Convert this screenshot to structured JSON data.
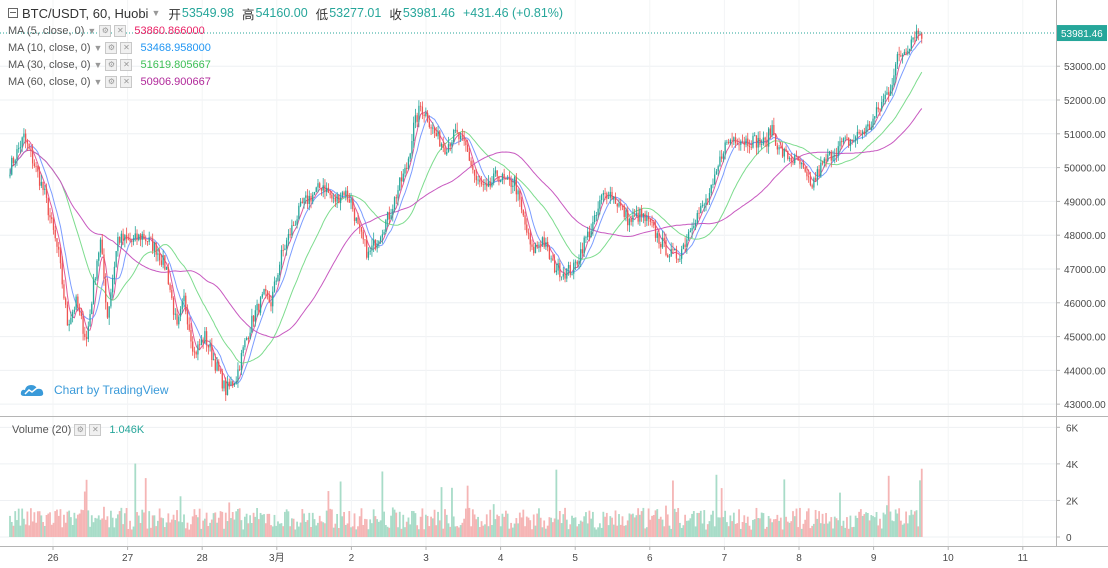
{
  "header": {
    "symbol": "BTC/USDT, 60, Huobi",
    "open_label": "开",
    "open": "53549.98",
    "high_label": "高",
    "high": "54160.00",
    "low_label": "低",
    "low": "53277.01",
    "close_label": "收",
    "close": "53981.46",
    "change": "+431.46 (+0.81%)"
  },
  "indicators": [
    {
      "name": "MA (5, close, 0)",
      "value": "53860.866000",
      "color": "#e91e63"
    },
    {
      "name": "MA (10, close, 0)",
      "value": "53468.958000",
      "color": "#2196f3"
    },
    {
      "name": "MA (30, close, 0)",
      "value": "51619.805667",
      "color": "#4caf50"
    },
    {
      "name": "MA (60, close, 0)",
      "value": "50906.900667",
      "color": "#9c27b0"
    }
  ],
  "volume": {
    "name": "Volume (20)",
    "value": "1.046K"
  },
  "attribution": "Chart by TradingView",
  "colors": {
    "up": "#26a69a",
    "down": "#ef5350",
    "up_vol": "#a8dcc8",
    "down_vol": "#f5b5b5",
    "ma5": "#e05a9a",
    "ma10": "#7b9cff",
    "ma30": "#7ddc8e",
    "ma60": "#c85ac0",
    "last_price": "#26a69a"
  },
  "chart_data": {
    "type": "candlestick",
    "interval": "60",
    "price_axis": {
      "ticks": [
        "43000.00",
        "44000.00",
        "45000.00",
        "46000.00",
        "47000.00",
        "48000.00",
        "49000.00",
        "50000.00",
        "51000.00",
        "52000.00",
        "53000.00"
      ],
      "ylim": [
        42650,
        54900
      ],
      "last_price_label": "53981.46"
    },
    "volume_axis": {
      "ticks": [
        "0",
        "2K",
        "4K",
        "6K"
      ],
      "ylim": [
        0,
        6400
      ]
    },
    "time_axis": {
      "labels": [
        "26",
        "27",
        "28",
        "3月",
        "2",
        "3",
        "4",
        "5",
        "6",
        "7",
        "8",
        "9",
        "10",
        "11"
      ]
    },
    "anchors": [
      {
        "day": "26",
        "t": 0,
        "close": 50000
      },
      {
        "t": 8,
        "close": 50900
      },
      {
        "t": 14,
        "close": 50100
      },
      {
        "t": 20,
        "close": 49200
      },
      {
        "t": 28,
        "close": 47400
      },
      {
        "t": 33,
        "close": 45400
      },
      {
        "t": 38,
        "close": 46000
      },
      {
        "t": 44,
        "close": 44900
      },
      {
        "t": 50,
        "close": 47300
      },
      {
        "day": "27",
        "t": 52,
        "close": 47800
      },
      {
        "t": 56,
        "close": 45600
      },
      {
        "t": 62,
        "close": 47900
      },
      {
        "t": 70,
        "close": 47800
      },
      {
        "t": 76,
        "close": 48000
      },
      {
        "t": 84,
        "close": 47600
      },
      {
        "t": 90,
        "close": 47000
      },
      {
        "t": 96,
        "close": 45200
      },
      {
        "day": "28",
        "t": 100,
        "close": 46100
      },
      {
        "t": 106,
        "close": 44500
      },
      {
        "t": 112,
        "close": 45000
      },
      {
        "t": 118,
        "close": 44200
      },
      {
        "t": 124,
        "close": 43400
      },
      {
        "t": 130,
        "close": 43800
      },
      {
        "t": 135,
        "close": 44800
      },
      {
        "t": 140,
        "close": 45600
      },
      {
        "t": 146,
        "close": 46200
      },
      {
        "day": "3月",
        "t": 150,
        "close": 46000
      },
      {
        "t": 156,
        "close": 47400
      },
      {
        "t": 162,
        "close": 48200
      },
      {
        "t": 168,
        "close": 48900
      },
      {
        "t": 174,
        "close": 49200
      },
      {
        "t": 180,
        "close": 49500
      },
      {
        "t": 186,
        "close": 49000
      },
      {
        "t": 192,
        "close": 49300
      },
      {
        "day": "2",
        "t": 196,
        "close": 49000
      },
      {
        "t": 200,
        "close": 48200
      },
      {
        "t": 206,
        "close": 47400
      },
      {
        "t": 212,
        "close": 48000
      },
      {
        "t": 218,
        "close": 48600
      },
      {
        "t": 224,
        "close": 49500
      },
      {
        "t": 228,
        "close": 50000
      },
      {
        "t": 232,
        "close": 51200
      },
      {
        "t": 236,
        "close": 51800
      },
      {
        "day": "3",
        "t": 240,
        "close": 51500
      },
      {
        "t": 244,
        "close": 51000
      },
      {
        "t": 250,
        "close": 50600
      },
      {
        "t": 256,
        "close": 51000
      },
      {
        "t": 262,
        "close": 50600
      },
      {
        "t": 268,
        "close": 49600
      },
      {
        "t": 274,
        "close": 49300
      },
      {
        "t": 280,
        "close": 49800
      },
      {
        "t": 286,
        "close": 49500
      },
      {
        "day": "4",
        "t": 290,
        "close": 49600
      },
      {
        "t": 294,
        "close": 48700
      },
      {
        "t": 300,
        "close": 47500
      },
      {
        "t": 306,
        "close": 47900
      },
      {
        "t": 312,
        "close": 47100
      },
      {
        "t": 318,
        "close": 46900
      },
      {
        "t": 324,
        "close": 47000
      },
      {
        "t": 330,
        "close": 47800
      },
      {
        "t": 336,
        "close": 48400
      },
      {
        "t": 340,
        "close": 49100
      },
      {
        "day": "5",
        "t": 344,
        "close": 49300
      },
      {
        "t": 350,
        "close": 48900
      },
      {
        "t": 356,
        "close": 48400
      },
      {
        "t": 362,
        "close": 48600
      },
      {
        "t": 368,
        "close": 48300
      },
      {
        "t": 374,
        "close": 47800
      },
      {
        "t": 380,
        "close": 47400
      },
      {
        "t": 384,
        "close": 47400
      },
      {
        "day": "6",
        "t": 388,
        "close": 47800
      },
      {
        "t": 392,
        "close": 48400
      },
      {
        "t": 398,
        "close": 48800
      },
      {
        "t": 404,
        "close": 49400
      },
      {
        "t": 410,
        "close": 50600
      },
      {
        "t": 416,
        "close": 50900
      },
      {
        "t": 422,
        "close": 50800
      },
      {
        "t": 428,
        "close": 50800
      },
      {
        "t": 434,
        "close": 50700
      },
      {
        "day": "7",
        "t": 438,
        "close": 51200
      },
      {
        "t": 442,
        "close": 50500
      },
      {
        "t": 448,
        "close": 50300
      },
      {
        "t": 454,
        "close": 50100
      },
      {
        "t": 460,
        "close": 49400
      },
      {
        "t": 466,
        "close": 50000
      },
      {
        "t": 472,
        "close": 50400
      },
      {
        "t": 478,
        "close": 50700
      },
      {
        "t": 484,
        "close": 50800
      },
      {
        "day": "8",
        "t": 488,
        "close": 51000
      },
      {
        "t": 494,
        "close": 51200
      },
      {
        "t": 500,
        "close": 51800
      },
      {
        "t": 506,
        "close": 52400
      },
      {
        "t": 510,
        "close": 53200
      },
      {
        "t": 516,
        "close": 53600
      },
      {
        "t": 520,
        "close": 54000
      },
      {
        "t": 524,
        "close": 53980
      }
    ]
  }
}
